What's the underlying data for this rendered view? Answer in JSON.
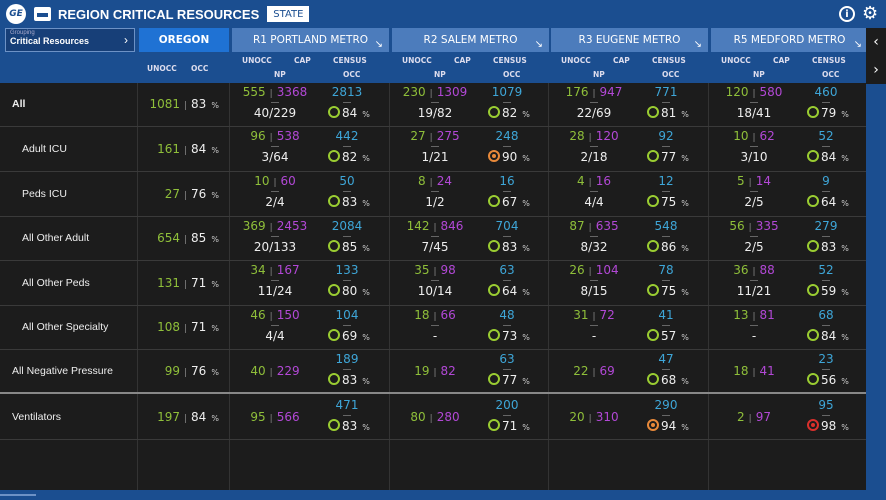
{
  "header": {
    "title": "REGION CRITICAL RESOURCES",
    "state_button": "STATE",
    "logo_text": "GE"
  },
  "grouping": {
    "label": "Grouping",
    "value": "Critical Resources"
  },
  "tabs": [
    "OREGON",
    "R1 PORTLAND METRO",
    "R2 SALEM METRO",
    "R3 EUGENE METRO",
    "R5 MEDFORD METRO"
  ],
  "column_headers": {
    "unocc": "UNOCC",
    "occ": "OCC",
    "cap": "CAP",
    "np": "NP",
    "census": "CENSUS"
  },
  "pct_sign": "%",
  "status_colors": {
    "ok": "#9acd32",
    "warning": "#e8893a",
    "critical": "#d9302c"
  },
  "rows": [
    {
      "label": "All",
      "bold": true,
      "oregon": {
        "unocc": "1081",
        "occ": "83"
      },
      "regions": [
        {
          "unocc": "555",
          "cap": "3368",
          "np": "40/229",
          "census": "2813",
          "occ": "84",
          "status": "ok"
        },
        {
          "unocc": "230",
          "cap": "1309",
          "np": "19/82",
          "census": "1079",
          "occ": "82",
          "status": "ok"
        },
        {
          "unocc": "176",
          "cap": "947",
          "np": "22/69",
          "census": "771",
          "occ": "81",
          "status": "ok"
        },
        {
          "unocc": "120",
          "cap": "580",
          "np": "18/41",
          "census": "460",
          "occ": "79",
          "status": "ok"
        }
      ]
    },
    {
      "label": "Adult ICU",
      "oregon": {
        "unocc": "161",
        "occ": "84"
      },
      "regions": [
        {
          "unocc": "96",
          "cap": "538",
          "np": "3/64",
          "census": "442",
          "occ": "82",
          "status": "ok"
        },
        {
          "unocc": "27",
          "cap": "275",
          "np": "1/21",
          "census": "248",
          "occ": "90",
          "status": "warning"
        },
        {
          "unocc": "28",
          "cap": "120",
          "np": "2/18",
          "census": "92",
          "occ": "77",
          "status": "ok"
        },
        {
          "unocc": "10",
          "cap": "62",
          "np": "3/10",
          "census": "52",
          "occ": "84",
          "status": "ok"
        }
      ]
    },
    {
      "label": "Peds ICU",
      "oregon": {
        "unocc": "27",
        "occ": "76"
      },
      "regions": [
        {
          "unocc": "10",
          "cap": "60",
          "np": "2/4",
          "census": "50",
          "occ": "83",
          "status": "ok"
        },
        {
          "unocc": "8",
          "cap": "24",
          "np": "1/2",
          "census": "16",
          "occ": "67",
          "status": "ok"
        },
        {
          "unocc": "4",
          "cap": "16",
          "np": "4/4",
          "census": "12",
          "occ": "75",
          "status": "ok"
        },
        {
          "unocc": "5",
          "cap": "14",
          "np": "2/5",
          "census": "9",
          "occ": "64",
          "status": "ok"
        }
      ]
    },
    {
      "label": "All Other Adult",
      "oregon": {
        "unocc": "654",
        "occ": "85"
      },
      "regions": [
        {
          "unocc": "369",
          "cap": "2453",
          "np": "20/133",
          "census": "2084",
          "occ": "85",
          "status": "ok"
        },
        {
          "unocc": "142",
          "cap": "846",
          "np": "7/45",
          "census": "704",
          "occ": "83",
          "status": "ok"
        },
        {
          "unocc": "87",
          "cap": "635",
          "np": "8/32",
          "census": "548",
          "occ": "86",
          "status": "ok"
        },
        {
          "unocc": "56",
          "cap": "335",
          "np": "2/5",
          "census": "279",
          "occ": "83",
          "status": "ok"
        }
      ]
    },
    {
      "label": "All Other Peds",
      "oregon": {
        "unocc": "131",
        "occ": "71"
      },
      "regions": [
        {
          "unocc": "34",
          "cap": "167",
          "np": "11/24",
          "census": "133",
          "occ": "80",
          "status": "ok"
        },
        {
          "unocc": "35",
          "cap": "98",
          "np": "10/14",
          "census": "63",
          "occ": "64",
          "status": "ok"
        },
        {
          "unocc": "26",
          "cap": "104",
          "np": "8/15",
          "census": "78",
          "occ": "75",
          "status": "ok"
        },
        {
          "unocc": "36",
          "cap": "88",
          "np": "11/21",
          "census": "52",
          "occ": "59",
          "status": "ok"
        }
      ]
    },
    {
      "label": "All Other Specialty",
      "oregon": {
        "unocc": "108",
        "occ": "71"
      },
      "regions": [
        {
          "unocc": "46",
          "cap": "150",
          "np": "4/4",
          "census": "104",
          "occ": "69",
          "status": "ok"
        },
        {
          "unocc": "18",
          "cap": "66",
          "np": "-",
          "census": "48",
          "occ": "73",
          "status": "ok"
        },
        {
          "unocc": "31",
          "cap": "72",
          "np": "-",
          "census": "41",
          "occ": "57",
          "status": "ok"
        },
        {
          "unocc": "13",
          "cap": "81",
          "np": "-",
          "census": "68",
          "occ": "84",
          "status": "ok"
        }
      ]
    },
    {
      "label": "All Negative Pressure",
      "outdent": true,
      "oregon": {
        "unocc": "99",
        "occ": "76"
      },
      "regions": [
        {
          "unocc": "40",
          "cap": "229",
          "census": "189",
          "occ": "83",
          "status": "ok"
        },
        {
          "unocc": "19",
          "cap": "82",
          "census": "63",
          "occ": "77",
          "status": "ok"
        },
        {
          "unocc": "22",
          "cap": "69",
          "census": "47",
          "occ": "68",
          "status": "ok"
        },
        {
          "unocc": "18",
          "cap": "41",
          "census": "23",
          "occ": "56",
          "status": "ok"
        }
      ]
    },
    {
      "label": "Ventilators",
      "outdent": true,
      "oregon": {
        "unocc": "197",
        "occ": "84"
      },
      "regions": [
        {
          "unocc": "95",
          "cap": "566",
          "census": "471",
          "occ": "83",
          "status": "ok"
        },
        {
          "unocc": "80",
          "cap": "280",
          "census": "200",
          "occ": "71",
          "status": "ok"
        },
        {
          "unocc": "20",
          "cap": "310",
          "census": "290",
          "occ": "94",
          "status": "warning"
        },
        {
          "unocc": "2",
          "cap": "97",
          "census": "95",
          "occ": "98",
          "status": "critical"
        }
      ]
    }
  ]
}
